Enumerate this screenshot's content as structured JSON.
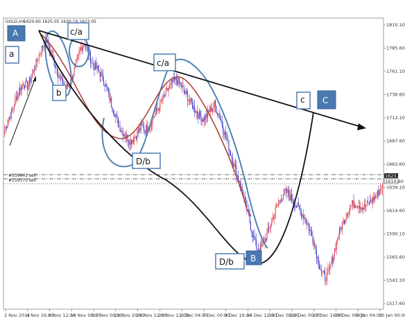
{
  "header": {
    "symbol_text": "GOLD,H4",
    "ohlc_text": "1620.60 1625.05 1620.19 1623.05"
  },
  "chart_data": {
    "type": "candlestick",
    "instrument": "GOLD",
    "timeframe": "H4",
    "y_ticks": [
      "1810.10",
      "1785.60",
      "1761.10",
      "1736.60",
      "1712.10",
      "1687.60",
      "1663.60",
      "1639.10",
      "1614.60",
      "1590.10",
      "1565.60",
      "1541.10",
      "1517.60"
    ],
    "ylim": [
      1510,
      1815
    ],
    "x_ticks": [
      "2 Nov 2011",
      "4 Nov 16:00",
      "9 Nov 12:00",
      "14 Nov 08:00",
      "17 Nov 00:00",
      "21 Nov 20:00",
      "24 Nov 12:00",
      "29 Nov 12:00",
      "2 Dec 04:00",
      "7 Dec 00:00",
      "9 Dec 16:00",
      "14 Dec 12:00",
      "19 Dec 08:00",
      "22 Dec 00:00",
      "27 Dec 16:00",
      "30 Dec 08:00",
      "5 Jan 04:00",
      "10 Jan 00:00"
    ],
    "price_tags": [
      "1623.05",
      "1614.60"
    ],
    "order_lines": [
      "#159641 sell",
      "#159570 sell"
    ],
    "close_series": [
      1700,
      1712,
      1722,
      1735,
      1745,
      1752,
      1748,
      1758,
      1770,
      1782,
      1792,
      1798,
      1786,
      1774,
      1762,
      1752,
      1746,
      1750,
      1762,
      1776,
      1790,
      1796,
      1784,
      1772,
      1768,
      1762,
      1754,
      1742,
      1728,
      1716,
      1704,
      1698,
      1692,
      1688,
      1692,
      1698,
      1704,
      1700,
      1706,
      1714,
      1722,
      1730,
      1738,
      1746,
      1752,
      1755,
      1750,
      1742,
      1736,
      1728,
      1722,
      1716,
      1712,
      1716,
      1722,
      1728,
      1718,
      1706,
      1692,
      1678,
      1664,
      1650,
      1636,
      1622,
      1604,
      1586,
      1572,
      1570,
      1578,
      1588,
      1600,
      1612,
      1622,
      1630,
      1632,
      1626,
      1620,
      1614,
      1608,
      1600,
      1590,
      1578,
      1560,
      1545,
      1538,
      1545,
      1560,
      1578,
      1592,
      1602,
      1612,
      1618,
      1620,
      1618,
      1615,
      1618,
      1622,
      1626,
      1632,
      1640
    ],
    "annotations": {
      "labels_boxed_white": [
        "a",
        "b",
        "c/a",
        "c/a",
        "D/b",
        "D/b",
        "c"
      ],
      "labels_boxed_blue": [
        "A",
        "B",
        "C"
      ]
    }
  },
  "annot": {
    "A": "A",
    "a": "a",
    "b": "b",
    "c_a_1": "c/a",
    "c_a_2": "c/a",
    "d_b_1": "D/b",
    "d_b_2": "D/b",
    "c": "c",
    "B": "B",
    "C": "C"
  },
  "colors": {
    "up_candle": "#e0303a",
    "down_candle": "#3333cc",
    "ellipse": "#4e82b4",
    "brown_curve": "#b04438",
    "trend_line": "#111111"
  }
}
